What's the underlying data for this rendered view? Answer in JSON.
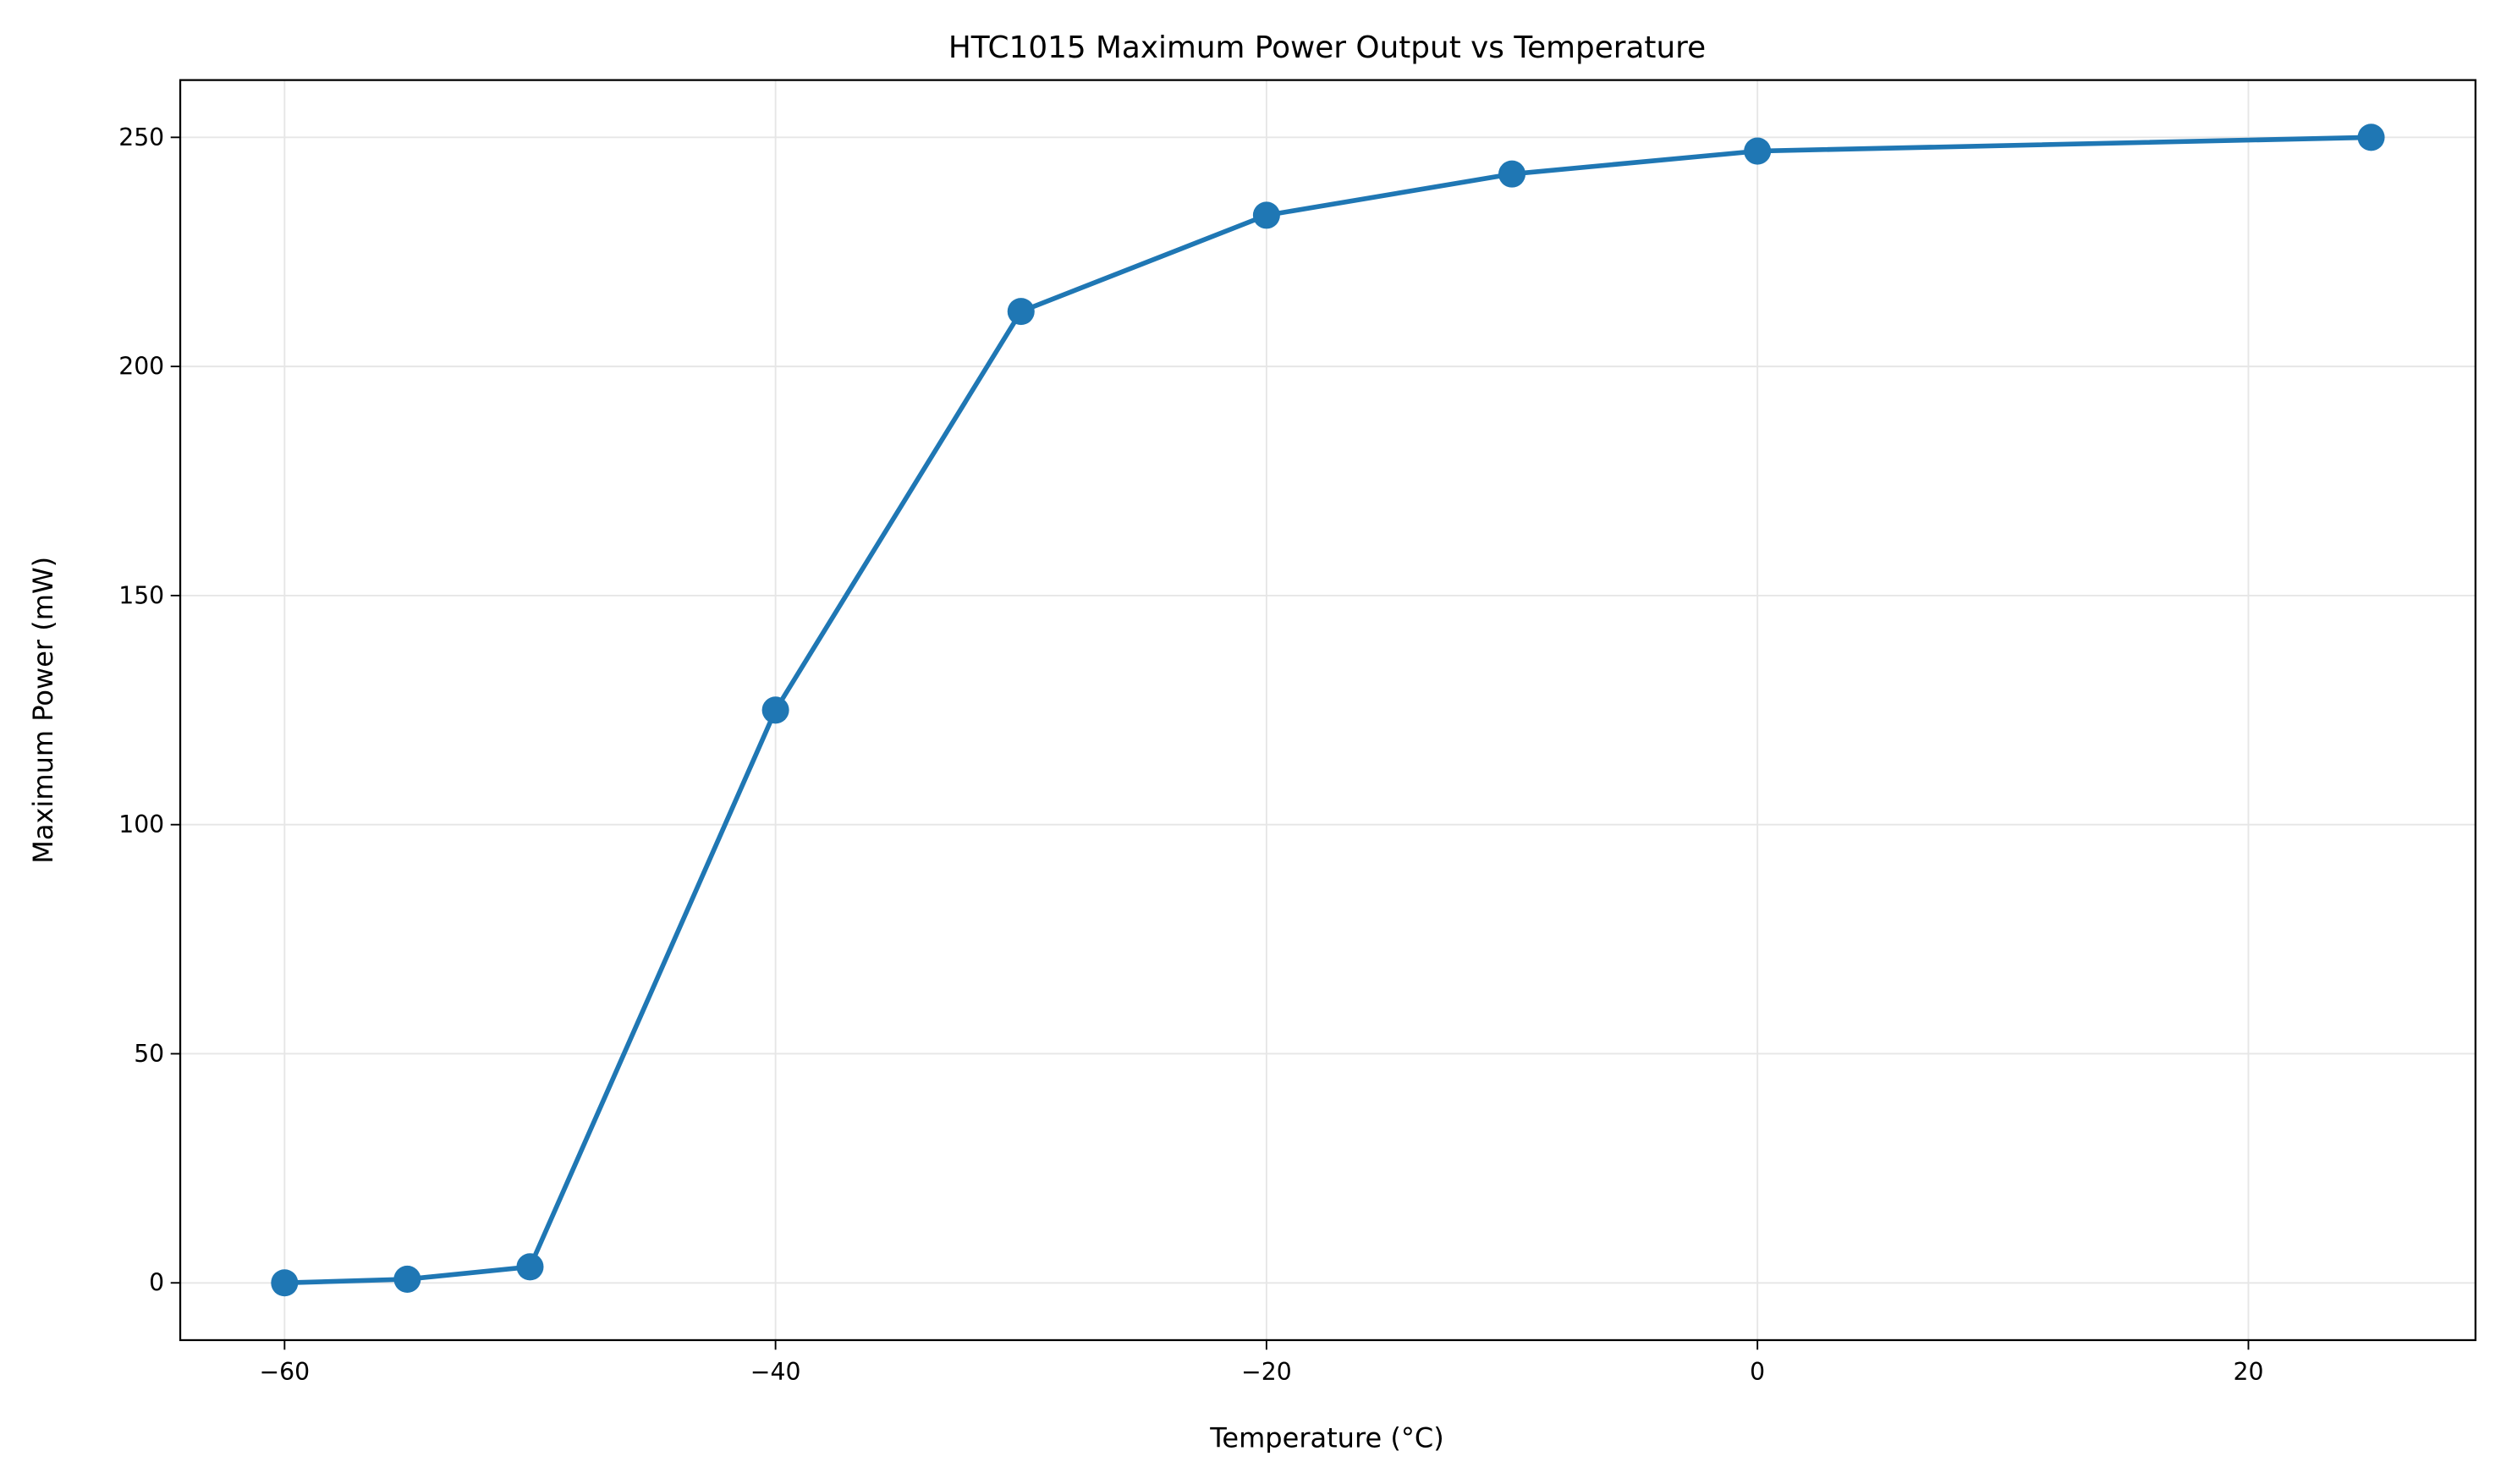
{
  "chart_data": {
    "type": "line",
    "title": "HTC1015 Maximum Power Output vs Temperature",
    "xlabel": "Temperature (°C)",
    "ylabel": "Maximum Power (mW)",
    "x": [
      -60,
      -55,
      -50,
      -40,
      -30,
      -20,
      -10,
      0,
      25
    ],
    "y": [
      0,
      0.8,
      3.5,
      125,
      212,
      233,
      242,
      247,
      250
    ],
    "xlim": [
      -64.25,
      29.25
    ],
    "ylim": [
      -12.5,
      262.5
    ],
    "xticks": [
      -60,
      -40,
      -20,
      0,
      20
    ],
    "xtick_labels": [
      "−60",
      "−40",
      "−20",
      "0",
      "20"
    ],
    "yticks": [
      0,
      50,
      100,
      150,
      200,
      250
    ],
    "ytick_labels": [
      "0",
      "50",
      "100",
      "150",
      "200",
      "250"
    ],
    "grid": true,
    "markers": true,
    "colors": {
      "series": "#1f77b4",
      "grid": "#e6e6e6",
      "axes": "#000000"
    }
  }
}
